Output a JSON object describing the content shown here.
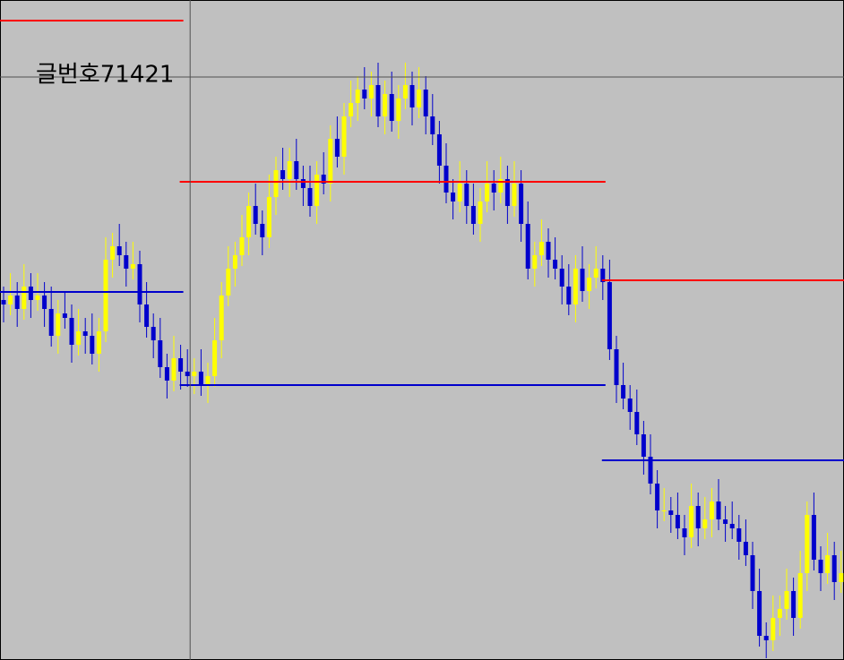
{
  "chart_data": {
    "type": "candlestick",
    "label": "글번호71421",
    "open": [
      665,
      660,
      670,
      655,
      680,
      665,
      670,
      655,
      625,
      650,
      645,
      615,
      630,
      625,
      605,
      630,
      710,
      725,
      715,
      700,
      705,
      660,
      635,
      620,
      590,
      575,
      600,
      585,
      580,
      585,
      570,
      580,
      620,
      670,
      700,
      715,
      735,
      770,
      750,
      735,
      780,
      810,
      800,
      820,
      800,
      790,
      770,
      805,
      795,
      845,
      825,
      870,
      885,
      900,
      890,
      905,
      870,
      895,
      865,
      890,
      905,
      880,
      900,
      870,
      850,
      815,
      785,
      775,
      795,
      770,
      750,
      775,
      795,
      785,
      800,
      770,
      795,
      750,
      700,
      715,
      730,
      710,
      700,
      680,
      660,
      700,
      675,
      690,
      700,
      685,
      610,
      570,
      555,
      540,
      515,
      490,
      460,
      430,
      430,
      425,
      410,
      400,
      435,
      410,
      420,
      440,
      420,
      415,
      410,
      395,
      380,
      340,
      290,
      285,
      310,
      320,
      340,
      310,
      360,
      425,
      375,
      360,
      380,
      350
    ],
    "high": [
      680,
      695,
      685,
      705,
      695,
      695,
      685,
      680,
      665,
      675,
      660,
      655,
      645,
      650,
      645,
      735,
      740,
      750,
      730,
      730,
      720,
      685,
      650,
      645,
      605,
      625,
      615,
      610,
      600,
      610,
      595,
      645,
      685,
      725,
      730,
      760,
      785,
      795,
      765,
      805,
      825,
      835,
      835,
      845,
      815,
      815,
      820,
      830,
      860,
      870,
      885,
      910,
      915,
      925,
      920,
      930,
      910,
      920,
      905,
      930,
      920,
      925,
      915,
      895,
      865,
      840,
      800,
      820,
      810,
      795,
      790,
      820,
      810,
      825,
      815,
      820,
      810,
      775,
      730,
      755,
      745,
      735,
      715,
      705,
      715,
      725,
      705,
      725,
      715,
      710,
      625,
      595,
      570,
      565,
      530,
      515,
      475,
      455,
      445,
      450,
      425,
      460,
      450,
      445,
      455,
      465,
      435,
      440,
      425,
      420,
      395,
      365,
      305,
      335,
      335,
      365,
      355,
      385,
      440,
      450,
      390,
      405,
      395,
      385
    ],
    "low": [
      640,
      648,
      635,
      643,
      645,
      653,
      635,
      613,
      605,
      633,
      595,
      603,
      605,
      593,
      585,
      618,
      690,
      703,
      680,
      688,
      640,
      623,
      600,
      578,
      555,
      563,
      565,
      568,
      560,
      558,
      550,
      568,
      600,
      658,
      680,
      703,
      715,
      738,
      715,
      723,
      760,
      788,
      780,
      788,
      770,
      758,
      750,
      783,
      775,
      813,
      805,
      858,
      865,
      878,
      870,
      858,
      850,
      853,
      845,
      878,
      860,
      868,
      850,
      838,
      795,
      773,
      755,
      763,
      750,
      738,
      730,
      763,
      765,
      773,
      750,
      758,
      730,
      688,
      680,
      703,
      690,
      688,
      660,
      648,
      640,
      663,
      655,
      678,
      665,
      598,
      550,
      543,
      520,
      503,
      470,
      448,
      410,
      418,
      405,
      398,
      380,
      388,
      390,
      398,
      400,
      408,
      395,
      398,
      375,
      368,
      320,
      278,
      265,
      273,
      290,
      308,
      290,
      298,
      340,
      363,
      340,
      348,
      330,
      338
    ],
    "close": [
      660,
      670,
      655,
      680,
      665,
      670,
      655,
      625,
      650,
      645,
      615,
      630,
      625,
      605,
      630,
      710,
      725,
      715,
      700,
      705,
      660,
      635,
      620,
      590,
      575,
      600,
      585,
      580,
      585,
      570,
      580,
      620,
      670,
      700,
      715,
      735,
      770,
      750,
      735,
      780,
      810,
      800,
      820,
      800,
      790,
      770,
      805,
      795,
      845,
      825,
      870,
      885,
      900,
      890,
      905,
      870,
      895,
      865,
      890,
      905,
      880,
      900,
      870,
      850,
      815,
      785,
      775,
      795,
      770,
      750,
      775,
      795,
      785,
      800,
      770,
      795,
      750,
      700,
      715,
      730,
      710,
      700,
      680,
      660,
      700,
      675,
      690,
      700,
      685,
      610,
      570,
      555,
      540,
      515,
      490,
      460,
      430,
      430,
      425,
      410,
      400,
      435,
      410,
      420,
      440,
      420,
      415,
      410,
      395,
      380,
      340,
      290,
      285,
      310,
      320,
      340,
      310,
      360,
      425,
      375,
      360,
      380,
      350,
      360
    ],
    "up_color": "#ffff00",
    "down_color": "#0000cc",
    "ylim": [
      263,
      1000
    ],
    "levels": [
      {
        "value": 977,
        "from": 0,
        "to": 26,
        "color": "#ff0000"
      },
      {
        "value": 797,
        "from": 26,
        "to": 88,
        "color": "#ff0000"
      },
      {
        "value": 687,
        "from": 88,
        "to": 123,
        "color": "#ff0000"
      },
      {
        "value": 674,
        "from": 0,
        "to": 26,
        "color": "#0000cc"
      },
      {
        "value": 570,
        "from": 26,
        "to": 88,
        "color": "#0000cc"
      },
      {
        "value": 486,
        "from": 88,
        "to": 123,
        "color": "#0000cc"
      }
    ],
    "crosshair": {
      "index": 27,
      "value": 914,
      "color": "#505050"
    }
  }
}
